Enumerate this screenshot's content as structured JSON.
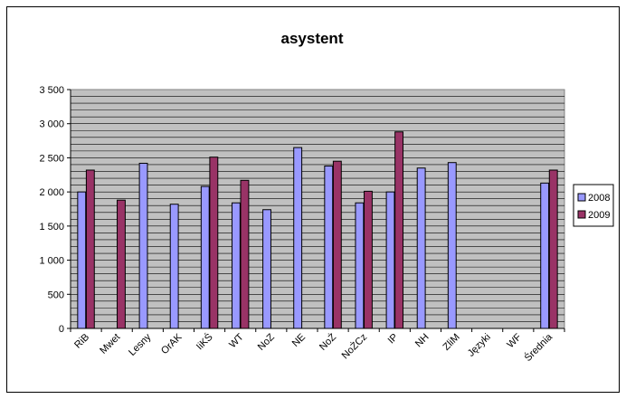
{
  "chart_data": {
    "type": "bar",
    "title": "asystent",
    "xlabel": "",
    "ylabel": "",
    "ylim": [
      0,
      3500
    ],
    "yticks": [
      0,
      500,
      1000,
      1500,
      2000,
      2500,
      3000,
      3500
    ],
    "ytick_labels": [
      "0",
      "500",
      "1 000",
      "1 500",
      "2 000",
      "2 500",
      "3 000",
      "3 500"
    ],
    "grid": true,
    "grid_minor_step": 100,
    "legend_position": "right",
    "categories": [
      "RiB",
      "Mwet",
      "Lesny",
      "OrAK",
      "IiKŚ",
      "WT",
      "NoZ",
      "NE",
      "NoŻ",
      "NoŻCz",
      "IP",
      "NH",
      "ZliM",
      "Języki",
      "WF",
      "Średnia"
    ],
    "series": [
      {
        "name": "2008",
        "color": "#9999ff",
        "values": [
          2000,
          null,
          2420,
          1820,
          2080,
          1840,
          1740,
          2650,
          2380,
          1840,
          2000,
          2350,
          2430,
          null,
          null,
          2130
        ]
      },
      {
        "name": "2009",
        "color": "#993366",
        "values": [
          2320,
          1880,
          null,
          null,
          2510,
          2170,
          null,
          null,
          2450,
          2010,
          2880,
          null,
          null,
          null,
          null,
          2320
        ]
      }
    ],
    "plot_background": "#c0c0c0"
  }
}
